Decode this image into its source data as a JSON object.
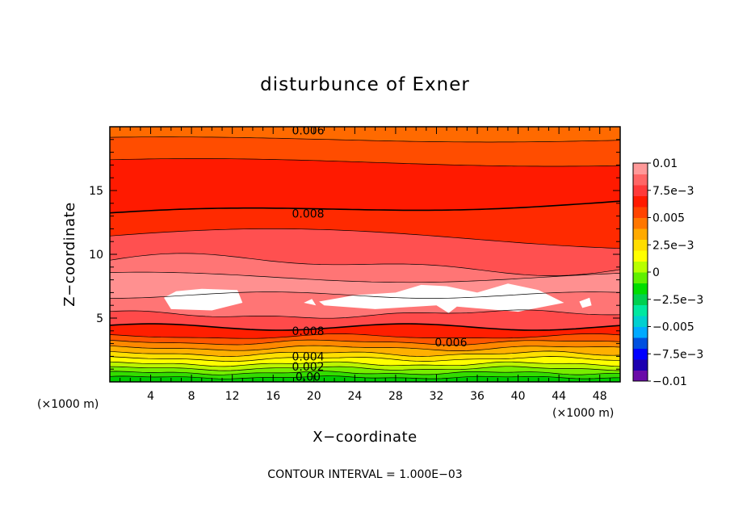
{
  "chart_data": {
    "type": "heatmap",
    "title": "disturbunce of Exner",
    "xlabel": "X−coordinate",
    "ylabel": "Z−coordinate",
    "x_unit": "(×1000 m)",
    "y_unit": "(×1000 m)",
    "xlim": [
      0,
      50
    ],
    "ylim": [
      0,
      20
    ],
    "x_ticks": [
      4,
      8,
      12,
      16,
      20,
      24,
      28,
      32,
      36,
      40,
      44,
      48
    ],
    "y_ticks": [
      5,
      10,
      15
    ],
    "footnote": "CONTOUR INTERVAL = 1.000E−03",
    "contour_interval": 0.001,
    "colorbar": {
      "range": [
        -0.01,
        0.01
      ],
      "labels": [
        "0.01",
        "7.5e−3",
        "0.005",
        "2.5e−3",
        "0",
        "−2.5e−3",
        "−0.005",
        "−7.5e−3",
        "−0.01"
      ],
      "colors": [
        "#6a0aa8",
        "#1c00b0",
        "#0000ff",
        "#0050e0",
        "#00aaff",
        "#00d0d0",
        "#00e8a0",
        "#00d050",
        "#00dd00",
        "#60f000",
        "#b8ff00",
        "#ffff00",
        "#ffdd00",
        "#ffaa00",
        "#ff7700",
        "#ff4400",
        "#ff1a00",
        "#ff3a3a",
        "#ff6666",
        "#ff9999"
      ]
    },
    "contour_labels": [
      {
        "text": "0.006",
        "x": 18,
        "z": 19.7
      },
      {
        "text": "0.008",
        "x": 18,
        "z": 13.2
      },
      {
        "text": "0.008",
        "x": 18,
        "z": 4.0
      },
      {
        "text": "0.006",
        "x": 32,
        "z": 3.1
      },
      {
        "text": "0.004",
        "x": 18,
        "z": 2.0
      },
      {
        "text": "0.002",
        "x": 18,
        "z": 1.2
      },
      {
        "text": "0.00",
        "x": 18,
        "z": 0.4
      }
    ]
  }
}
